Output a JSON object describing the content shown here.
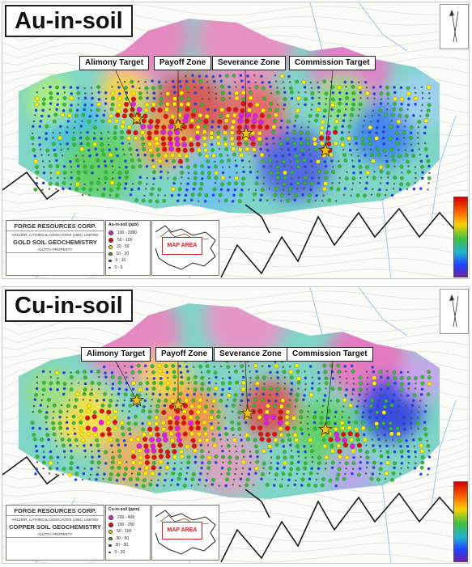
{
  "panels": [
    {
      "id": "au",
      "title": "Au-in-soil",
      "targets": [
        "Alimony Target",
        "Payoff Zone",
        "Severance Zone",
        "Commission Target"
      ],
      "title_block": {
        "company": "FORGE RESOURCES CORP.",
        "consultant": "ARCHER, CATHRO & ASSOCIATES (1981) LIMITED",
        "map_title": "GOLD SOIL GEOCHEMISTRY",
        "property": "ALOTTA PROPERTY"
      },
      "legend": {
        "title": "Au-in-soil (ppb)",
        "classes": [
          {
            "label": "100 - 2080",
            "color": "#e020e0"
          },
          {
            "label": "50 - 100",
            "color": "#e01010"
          },
          {
            "label": "20 - 50",
            "color": "#ffee00"
          },
          {
            "label": "10 - 20",
            "color": "#30c030"
          },
          {
            "label": "5 - 10",
            "color": "#2040ff"
          },
          {
            "label": "0 - 5",
            "color": "#555555"
          }
        ]
      },
      "inset_label": "MAP AREA"
    },
    {
      "id": "cu",
      "title": "Cu-in-soil",
      "targets": [
        "Alimony Target",
        "Payoff Zone",
        "Severance Zone",
        "Commission Target"
      ],
      "title_block": {
        "company": "FORGE RESOURCES CORP.",
        "consultant": "ARCHER, CATHRO & ASSOCIATES (1981) LIMITED",
        "map_title": "COPPER SOIL GEOCHEMISTRY",
        "property": "ALOTTA PROPERTY"
      },
      "legend": {
        "title": "Cu-in-soil (ppm)",
        "classes": [
          {
            "label": "200 - 409",
            "color": "#e020e0"
          },
          {
            "label": "100 - 200",
            "color": "#e01010"
          },
          {
            "label": "50 - 100",
            "color": "#ffee00"
          },
          {
            "label": "30 - 50",
            "color": "#30c030"
          },
          {
            "label": "20 - 30",
            "color": "#2040ff"
          },
          {
            "label": "0 - 20",
            "color": "#555555"
          }
        ]
      },
      "inset_label": "MAP AREA"
    }
  ],
  "colors": {
    "background": "#fbfbf8",
    "contour": "#cfcfcf",
    "creek": "#8cb4dc",
    "road": "#1a1a1a",
    "star_fill": "#f0c020",
    "star_stroke": "#5a3a00"
  }
}
